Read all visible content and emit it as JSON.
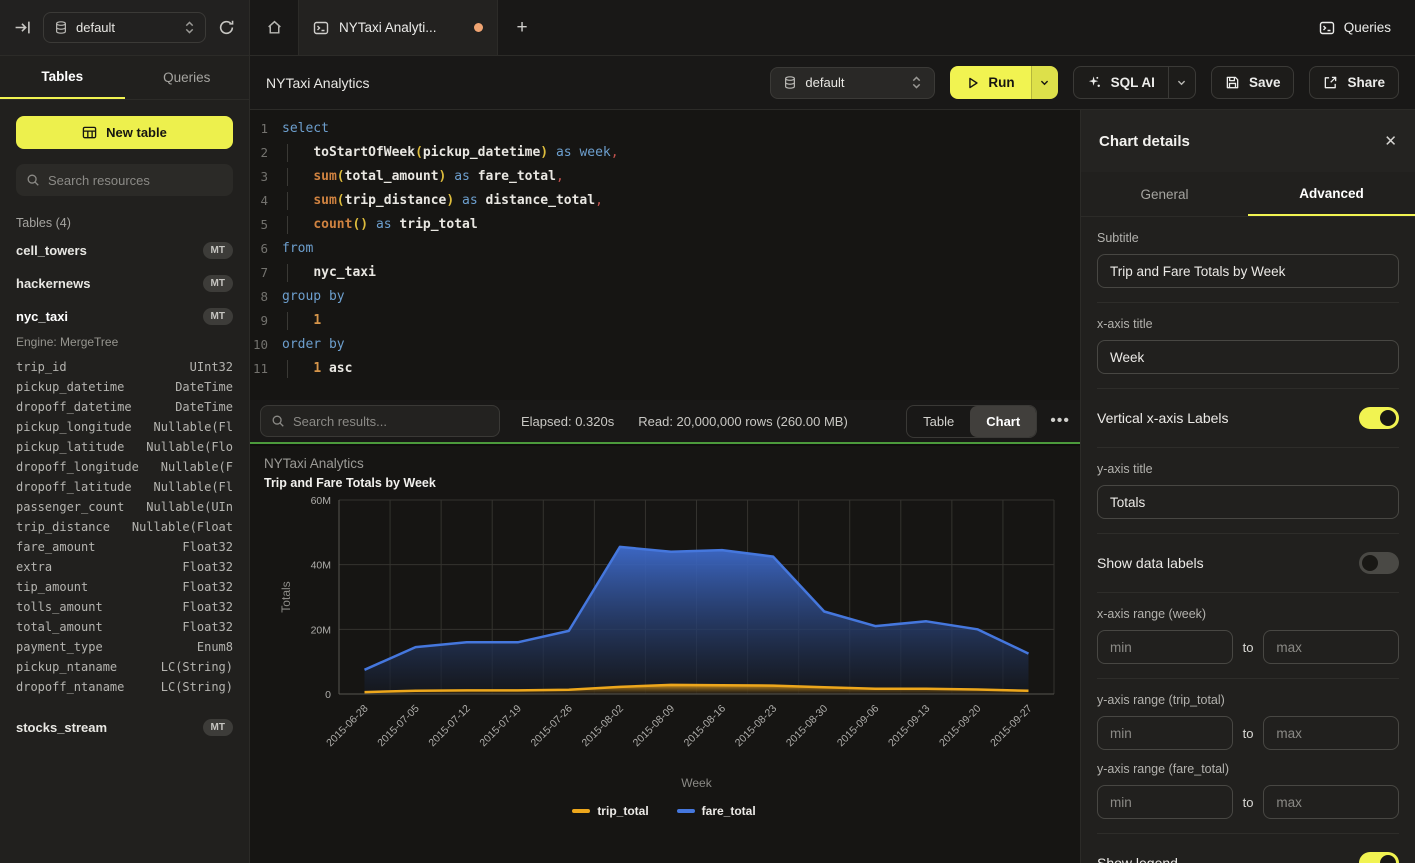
{
  "topbar": {
    "db_selector": "default",
    "tab_title": "NYTaxi Analyti...",
    "new_tab_label": "+",
    "queries_label": "Queries"
  },
  "sidebar": {
    "tabs": [
      {
        "label": "Tables"
      },
      {
        "label": "Queries"
      }
    ],
    "new_table_label": "New table",
    "search_placeholder": "Search resources",
    "section_label": "Tables (4)",
    "tables_top": [
      {
        "name": "cell_towers",
        "badge": "MT"
      },
      {
        "name": "hackernews",
        "badge": "MT"
      }
    ],
    "selected_table": {
      "name": "nyc_taxi",
      "badge": "MT",
      "engine": "Engine: MergeTree"
    },
    "columns": [
      {
        "name": "trip_id",
        "type": "UInt32"
      },
      {
        "name": "pickup_datetime",
        "type": "DateTime"
      },
      {
        "name": "dropoff_datetime",
        "type": "DateTime"
      },
      {
        "name": "pickup_longitude",
        "type": "Nullable(Fl"
      },
      {
        "name": "pickup_latitude",
        "type": "Nullable(Flo"
      },
      {
        "name": "dropoff_longitude",
        "type": "Nullable(F"
      },
      {
        "name": "dropoff_latitude",
        "type": "Nullable(Fl"
      },
      {
        "name": "passenger_count",
        "type": "Nullable(UIn"
      },
      {
        "name": "trip_distance",
        "type": "Nullable(Float"
      },
      {
        "name": "fare_amount",
        "type": "Float32"
      },
      {
        "name": "extra",
        "type": "Float32"
      },
      {
        "name": "tip_amount",
        "type": "Float32"
      },
      {
        "name": "tolls_amount",
        "type": "Float32"
      },
      {
        "name": "total_amount",
        "type": "Float32"
      },
      {
        "name": "payment_type",
        "type": "Enum8"
      },
      {
        "name": "pickup_ntaname",
        "type": "LC(String)"
      },
      {
        "name": "dropoff_ntaname",
        "type": "LC(String)"
      }
    ],
    "table_bottom": {
      "name": "stocks_stream",
      "badge": "MT"
    }
  },
  "header": {
    "title": "NYTaxi Analytics",
    "db_selector": "default",
    "run_label": "Run",
    "sql_ai_label": "SQL AI",
    "save_label": "Save",
    "share_label": "Share"
  },
  "editor": {
    "lines": [
      {
        "n": "1",
        "ind": false,
        "seg": [
          {
            "t": "select",
            "c": "kw"
          }
        ]
      },
      {
        "n": "2",
        "ind": true,
        "seg": [
          {
            "t": "toStartOfWeek",
            "c": "id"
          },
          {
            "t": "(",
            "c": "pa"
          },
          {
            "t": "pickup_datetime",
            "c": "id"
          },
          {
            "t": ")",
            "c": "pa"
          },
          {
            "t": " ",
            "c": "pl"
          },
          {
            "t": "as",
            "c": "kw"
          },
          {
            "t": " ",
            "c": "pl"
          },
          {
            "t": "week",
            "c": "kw"
          },
          {
            "t": ",",
            "c": "cm"
          }
        ]
      },
      {
        "n": "3",
        "ind": true,
        "seg": [
          {
            "t": "sum",
            "c": "fn"
          },
          {
            "t": "(",
            "c": "pa"
          },
          {
            "t": "total_amount",
            "c": "id"
          },
          {
            "t": ")",
            "c": "pa"
          },
          {
            "t": " ",
            "c": "pl"
          },
          {
            "t": "as",
            "c": "kw"
          },
          {
            "t": " ",
            "c": "pl"
          },
          {
            "t": "fare_total",
            "c": "id"
          },
          {
            "t": ",",
            "c": "cm"
          }
        ]
      },
      {
        "n": "4",
        "ind": true,
        "seg": [
          {
            "t": "sum",
            "c": "fn"
          },
          {
            "t": "(",
            "c": "pa"
          },
          {
            "t": "trip_distance",
            "c": "id"
          },
          {
            "t": ")",
            "c": "pa"
          },
          {
            "t": " ",
            "c": "pl"
          },
          {
            "t": "as",
            "c": "kw"
          },
          {
            "t": " ",
            "c": "pl"
          },
          {
            "t": "distance_total",
            "c": "id"
          },
          {
            "t": ",",
            "c": "cm"
          }
        ]
      },
      {
        "n": "5",
        "ind": true,
        "seg": [
          {
            "t": "count",
            "c": "fn"
          },
          {
            "t": "()",
            "c": "pa"
          },
          {
            "t": " ",
            "c": "pl"
          },
          {
            "t": "as",
            "c": "kw"
          },
          {
            "t": " ",
            "c": "pl"
          },
          {
            "t": "trip_total",
            "c": "id"
          }
        ]
      },
      {
        "n": "6",
        "ind": false,
        "seg": [
          {
            "t": "from",
            "c": "kw"
          }
        ]
      },
      {
        "n": "7",
        "ind": true,
        "seg": [
          {
            "t": "nyc_taxi",
            "c": "id"
          }
        ]
      },
      {
        "n": "8",
        "ind": false,
        "seg": [
          {
            "t": "group by",
            "c": "kw"
          }
        ]
      },
      {
        "n": "9",
        "ind": true,
        "seg": [
          {
            "t": "1",
            "c": "nu"
          }
        ]
      },
      {
        "n": "10",
        "ind": false,
        "seg": [
          {
            "t": "order by",
            "c": "kw"
          }
        ]
      },
      {
        "n": "11",
        "ind": true,
        "seg": [
          {
            "t": "1",
            "c": "nu"
          },
          {
            "t": " ",
            "c": "pl"
          },
          {
            "t": "asc",
            "c": "id"
          }
        ]
      }
    ]
  },
  "results_bar": {
    "search_placeholder": "Search results...",
    "elapsed": "Elapsed: 0.320s",
    "read": "Read: 20,000,000 rows (260.00 MB)",
    "view_toggle": [
      {
        "label": "Table"
      },
      {
        "label": "Chart"
      }
    ],
    "more": "•••"
  },
  "chart_data": {
    "type": "area",
    "title": "NYTaxi Analytics",
    "subtitle": "Trip and Fare Totals by Week",
    "xlabel": "Week",
    "ylabel": "Totals",
    "x": [
      "2015-06-28",
      "2015-07-05",
      "2015-07-12",
      "2015-07-19",
      "2015-07-26",
      "2015-08-02",
      "2015-08-09",
      "2015-08-16",
      "2015-08-23",
      "2015-08-30",
      "2015-09-06",
      "2015-09-13",
      "2015-09-20",
      "2015-09-27"
    ],
    "series": [
      {
        "name": "trip_total",
        "color": "#eda71c",
        "values_millions": [
          0.6,
          1.0,
          1.1,
          1.1,
          1.3,
          2.2,
          2.8,
          2.7,
          2.6,
          2.1,
          1.6,
          1.6,
          1.4,
          1.0
        ]
      },
      {
        "name": "fare_total",
        "color": "#4577dd",
        "values_millions": [
          7.5,
          14.5,
          16,
          16,
          19.5,
          45.5,
          44,
          44.5,
          42.5,
          25.5,
          21,
          22.5,
          20,
          12.5
        ]
      }
    ],
    "ylim_millions": [
      0,
      60
    ],
    "ytick_values": [
      0,
      20,
      40,
      60
    ],
    "yticks": [
      "0",
      "20M",
      "40M",
      "60M"
    ],
    "grid": true,
    "legend_position": "bottom"
  },
  "panel": {
    "title": "Chart details",
    "close": "✕",
    "tabs": [
      {
        "label": "General"
      },
      {
        "label": "Advanced"
      }
    ],
    "fields": {
      "subtitle_label": "Subtitle",
      "subtitle_value": "Trip and Fare Totals by Week",
      "xaxis_title_label": "x-axis title",
      "xaxis_title_value": "Week",
      "vertical_labels_label": "Vertical x-axis Labels",
      "vertical_labels_on": true,
      "yaxis_title_label": "y-axis title",
      "yaxis_title_value": "Totals",
      "data_labels_label": "Show data labels",
      "data_labels_on": false,
      "xrange_label": "x-axis range (week)",
      "yrange_trip_label": "y-axis range (trip_total)",
      "yrange_fare_label": "y-axis range (fare_total)",
      "min_placeholder": "min",
      "max_placeholder": "max",
      "to_label": "to",
      "legend_label": "Show legend",
      "legend_on": true
    }
  }
}
